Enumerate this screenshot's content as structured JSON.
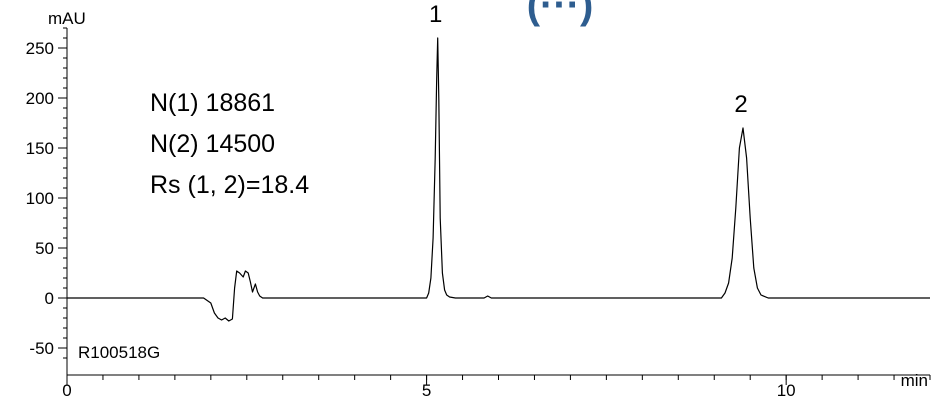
{
  "header": {
    "text": "(···)",
    "color": "#2e5d8f"
  },
  "chart_data": {
    "type": "line",
    "title": "",
    "xlabel": "min",
    "ylabel": "mAU",
    "xlim": [
      0,
      12.0
    ],
    "ylim": [
      -60,
      270
    ],
    "x_ticks": [
      0,
      5,
      10
    ],
    "y_ticks": [
      -50,
      0,
      50,
      100,
      150,
      200,
      250
    ],
    "x_minor_step": 0.5,
    "y_minor_step": 10,
    "grid": false,
    "line_color": "#000000",
    "series": [
      {
        "x": [
          0,
          1.9,
          2.0,
          2.05,
          2.1,
          2.15,
          2.2,
          2.25,
          2.3,
          2.33,
          2.36,
          2.4,
          2.45,
          2.48,
          2.52,
          2.55,
          2.58,
          2.62,
          2.65,
          2.68,
          2.72,
          2.8,
          2.9,
          5.0,
          5.03,
          5.06,
          5.09,
          5.12,
          5.14,
          5.155,
          5.17,
          5.19,
          5.22,
          5.25,
          5.28,
          5.32,
          5.4,
          5.8,
          5.85,
          5.9,
          9.1,
          9.15,
          9.2,
          9.25,
          9.3,
          9.35,
          9.4,
          9.45,
          9.5,
          9.55,
          9.6,
          9.65,
          9.75,
          12.0
        ],
        "y": [
          0,
          0,
          -5,
          -15,
          -20,
          -22,
          -20,
          -23,
          -21,
          10,
          27,
          25,
          21,
          27,
          25,
          16,
          6,
          14,
          6,
          2,
          0,
          0,
          0,
          0,
          5,
          20,
          60,
          140,
          220,
          260,
          200,
          80,
          25,
          8,
          3,
          1,
          0,
          0,
          2,
          0,
          0,
          5,
          15,
          40,
          90,
          150,
          170,
          140,
          80,
          30,
          10,
          3,
          0,
          0
        ]
      }
    ],
    "peak_labels": [
      {
        "text": "1",
        "x": 5.155,
        "y": 260
      },
      {
        "text": "2",
        "x": 9.4,
        "y": 170
      }
    ],
    "annotations": [
      "N(1)   18861",
      "N(2)   14500",
      "Rs (1, 2)=18.4"
    ],
    "sample_id": "R100518G"
  }
}
